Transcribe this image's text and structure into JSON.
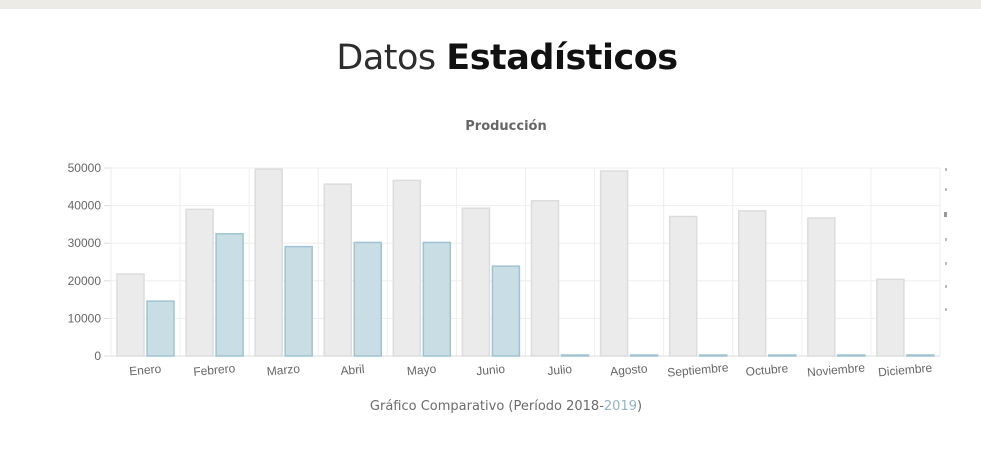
{
  "page": {
    "title_light": "Datos",
    "title_bold": "Estadísticos"
  },
  "caption": {
    "prefix": "Gráfico Comparativo (Período 2018-",
    "year_b": "2019",
    "suffix": ")"
  },
  "colors": {
    "series_2018_fill": "#ebebeb",
    "series_2018_stroke": "#dcdcdc",
    "series_2019_fill": "#c9dde5",
    "series_2019_stroke": "#9ec4d2",
    "grid": "#eeeeee",
    "axis_text": "#666666"
  },
  "chart_data": {
    "type": "bar",
    "title": "Producción",
    "xlabel": "",
    "ylabel": "",
    "ylim": [
      0,
      50000
    ],
    "yticks": [
      "0",
      "10000",
      "20000",
      "30000",
      "40000",
      "50000"
    ],
    "grid": true,
    "legend": "none",
    "categories": [
      "Enero",
      "Febrero",
      "Marzo",
      "Abril",
      "Mayo",
      "Junio",
      "Julio",
      "Agosto",
      "Septiembre",
      "Octubre",
      "Noviembre",
      "Diciembre"
    ],
    "series": [
      {
        "values": [
          21800,
          39000,
          49700,
          45700,
          46700,
          39300,
          41300,
          49200,
          37100,
          38600,
          36700,
          20400
        ]
      },
      {
        "values": [
          14600,
          32500,
          29100,
          30200,
          30200,
          23900,
          0,
          0,
          0,
          0,
          0,
          0
        ]
      }
    ]
  }
}
